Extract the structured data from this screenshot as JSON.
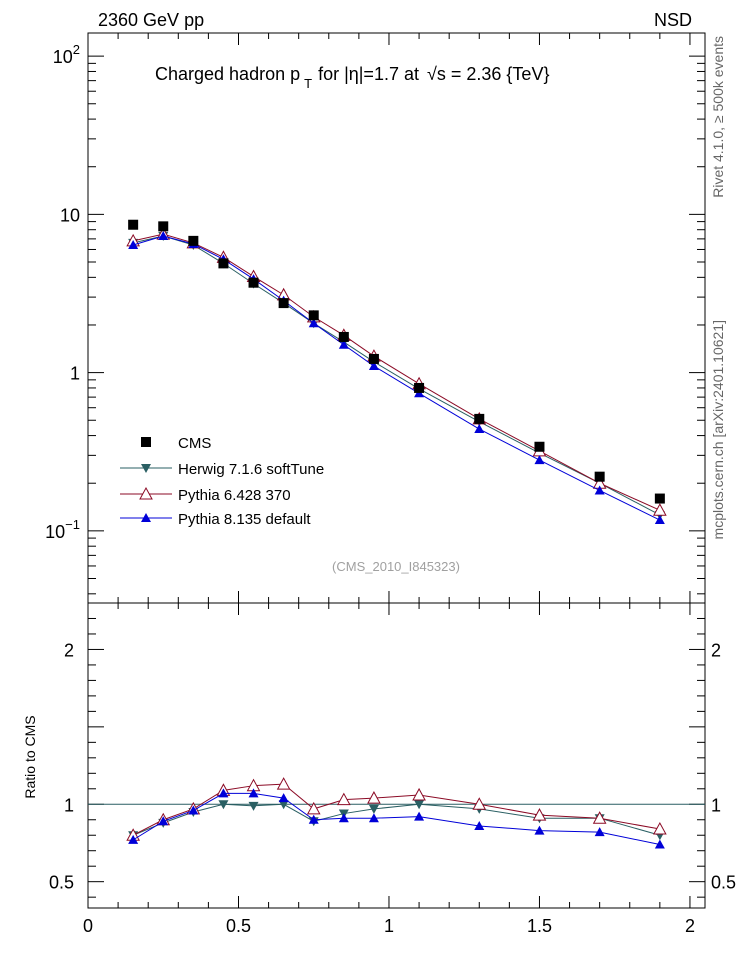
{
  "header": {
    "left_label": "2360 GeV pp",
    "right_label": "NSD"
  },
  "side_labels": {
    "rivet": "Rivet 4.1.0, ≥ 500k events",
    "mcplots": "mcplots.cern.ch [arXiv:2401.10621]"
  },
  "chart_data": [
    {
      "type": "scatter",
      "panel": "main",
      "title": "Charged hadron p_T for |η|=1.7 at √s = 2.36 {TeV}",
      "title_parts": {
        "pre": "Charged hadron p",
        "sub": "T",
        "mid": "for |η|=1.7 at",
        "sqrt": "√",
        "post": "s = 2.36 {TeV}"
      },
      "watermark": "(CMS_2010_I845323)",
      "yscale": "log",
      "xlim": [
        0,
        2.05
      ],
      "ylim": [
        0.035,
        140
      ],
      "ytick_labels": [
        {
          "value": 0.1,
          "base": "10",
          "exp": "−1"
        },
        {
          "value": 1,
          "base": "1",
          "exp": ""
        },
        {
          "value": 10,
          "base": "10",
          "exp": ""
        },
        {
          "value": 100,
          "base": "10",
          "exp": "2"
        }
      ],
      "x": [
        0.15,
        0.25,
        0.35,
        0.45,
        0.55,
        0.65,
        0.75,
        0.85,
        0.95,
        1.1,
        1.3,
        1.5,
        1.7,
        1.9
      ],
      "series": [
        {
          "name": "CMS",
          "marker": "square",
          "color": "#000000",
          "values": [
            8.6,
            8.4,
            6.8,
            4.9,
            3.7,
            2.75,
            2.3,
            1.68,
            1.22,
            0.8,
            0.51,
            0.34,
            0.22,
            0.16
          ]
        },
        {
          "name": "Herwig 7.1.6 softTune",
          "marker": "triangle-down",
          "color": "#2a5f63",
          "values": [
            6.6,
            7.3,
            6.4,
            4.9,
            3.65,
            2.75,
            2.05,
            1.56,
            1.17,
            0.79,
            0.49,
            0.31,
            0.2,
            0.126
          ]
        },
        {
          "name": "Pythia 6.428 370",
          "marker": "triangle-open",
          "color": "#8b0a25",
          "values": [
            6.8,
            7.5,
            6.6,
            5.35,
            4.05,
            3.1,
            2.25,
            1.72,
            1.27,
            0.85,
            0.51,
            0.32,
            0.2,
            0.135
          ]
        },
        {
          "name": "Pythia 8.135 default",
          "marker": "triangle-up",
          "color": "#0000d8",
          "values": [
            6.4,
            7.3,
            6.5,
            5.2,
            3.9,
            2.85,
            2.05,
            1.5,
            1.1,
            0.74,
            0.44,
            0.28,
            0.18,
            0.117
          ]
        }
      ]
    },
    {
      "type": "scatter",
      "panel": "ratio",
      "ylabel": "Ratio to CMS",
      "xlim": [
        0,
        2.05
      ],
      "ylim": [
        0.33,
        2.3
      ],
      "ytick_labels": [
        "0.5",
        "1",
        "2"
      ],
      "xtick_labels": [
        "0",
        "0.5",
        "1",
        "1.5",
        "2"
      ],
      "reference_line": 1.0,
      "x": [
        0.15,
        0.25,
        0.35,
        0.45,
        0.55,
        0.65,
        0.75,
        0.85,
        0.95,
        1.1,
        1.3,
        1.5,
        1.7,
        1.9
      ],
      "series": [
        {
          "name": "Herwig 7.1.6 softTune",
          "marker": "triangle-down",
          "color": "#2a5f63",
          "values": [
            0.8,
            0.88,
            0.95,
            1.0,
            0.99,
            1.0,
            0.89,
            0.94,
            0.97,
            1.0,
            0.97,
            0.91,
            0.91,
            0.8
          ]
        },
        {
          "name": "Pythia 6.428 370",
          "marker": "triangle-open",
          "color": "#8b0a25",
          "values": [
            0.8,
            0.9,
            0.97,
            1.09,
            1.12,
            1.13,
            0.97,
            1.03,
            1.04,
            1.06,
            1.0,
            0.93,
            0.91,
            0.84
          ]
        },
        {
          "name": "Pythia 8.135 default",
          "marker": "triangle-up",
          "color": "#0000d8",
          "values": [
            0.77,
            0.89,
            0.96,
            1.07,
            1.07,
            1.04,
            0.9,
            0.91,
            0.91,
            0.92,
            0.86,
            0.83,
            0.82,
            0.74
          ]
        }
      ]
    }
  ]
}
